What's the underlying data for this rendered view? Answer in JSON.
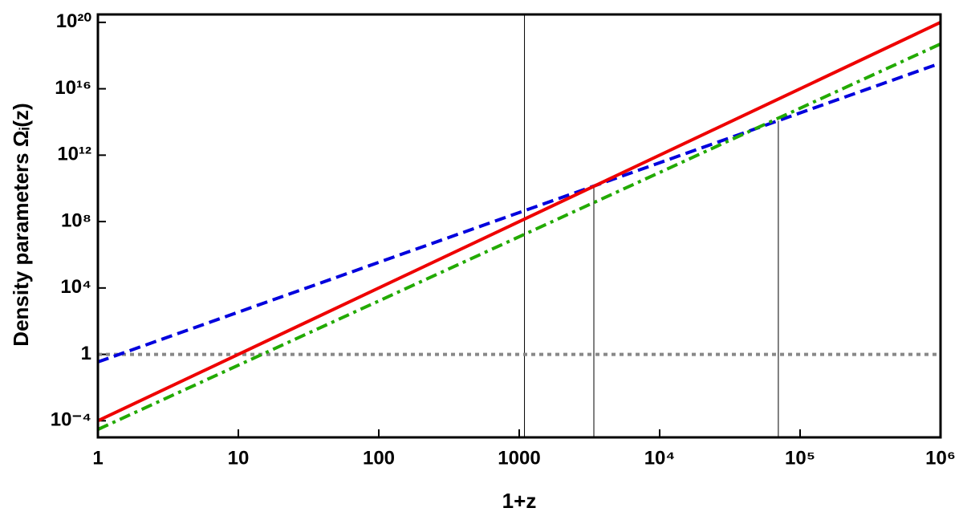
{
  "chart_data": {
    "type": "line",
    "xlabel": "1+z",
    "ylabel": "Density  parameters  Ωᵢ(z)",
    "xscale": "log",
    "yscale": "log",
    "x": [
      1,
      1000000
    ],
    "series": [
      {
        "color": "#888888",
        "dash": "dotted",
        "values": [
          1,
          1
        ]
      },
      {
        "color": "#0000dd",
        "dash": "dashed",
        "values": [
          0.35,
          350000000000000000
        ]
      },
      {
        "color": "#ee0000",
        "dash": "solid",
        "values": [
          0.0001,
          100000000000000000000
        ]
      },
      {
        "color": "#22aa00",
        "dash": "dashdot",
        "values": [
          3e-05,
          5000000000000000000
        ]
      }
    ],
    "vlines": [
      {
        "x": 1090,
        "y": 300000000000000000000
      },
      {
        "x": 3400,
        "y": 14000000000
      },
      {
        "x": 70000,
        "y": 120000000000000
      }
    ],
    "xlim": [
      1,
      1000000
    ],
    "ylim": [
      1e-05,
      300000000000000000000
    ],
    "xticks": [
      1,
      10,
      100,
      1000,
      {
        "value": 10000,
        "label": "10⁴"
      },
      {
        "value": 100000,
        "label": "10⁵"
      },
      {
        "value": 1000000,
        "label": "10⁶"
      }
    ],
    "yticks": [
      {
        "value": 0.0001,
        "label": "10⁻⁴"
      },
      1,
      {
        "value": 10000,
        "label": "10⁴"
      },
      {
        "value": 100000000,
        "label": "10⁸"
      },
      {
        "value": 1000000000000,
        "label": "10¹²"
      },
      {
        "value": 10000000000000000,
        "label": "10¹⁶"
      },
      {
        "value": 100000000000000000000,
        "label": "10²⁰"
      }
    ]
  }
}
